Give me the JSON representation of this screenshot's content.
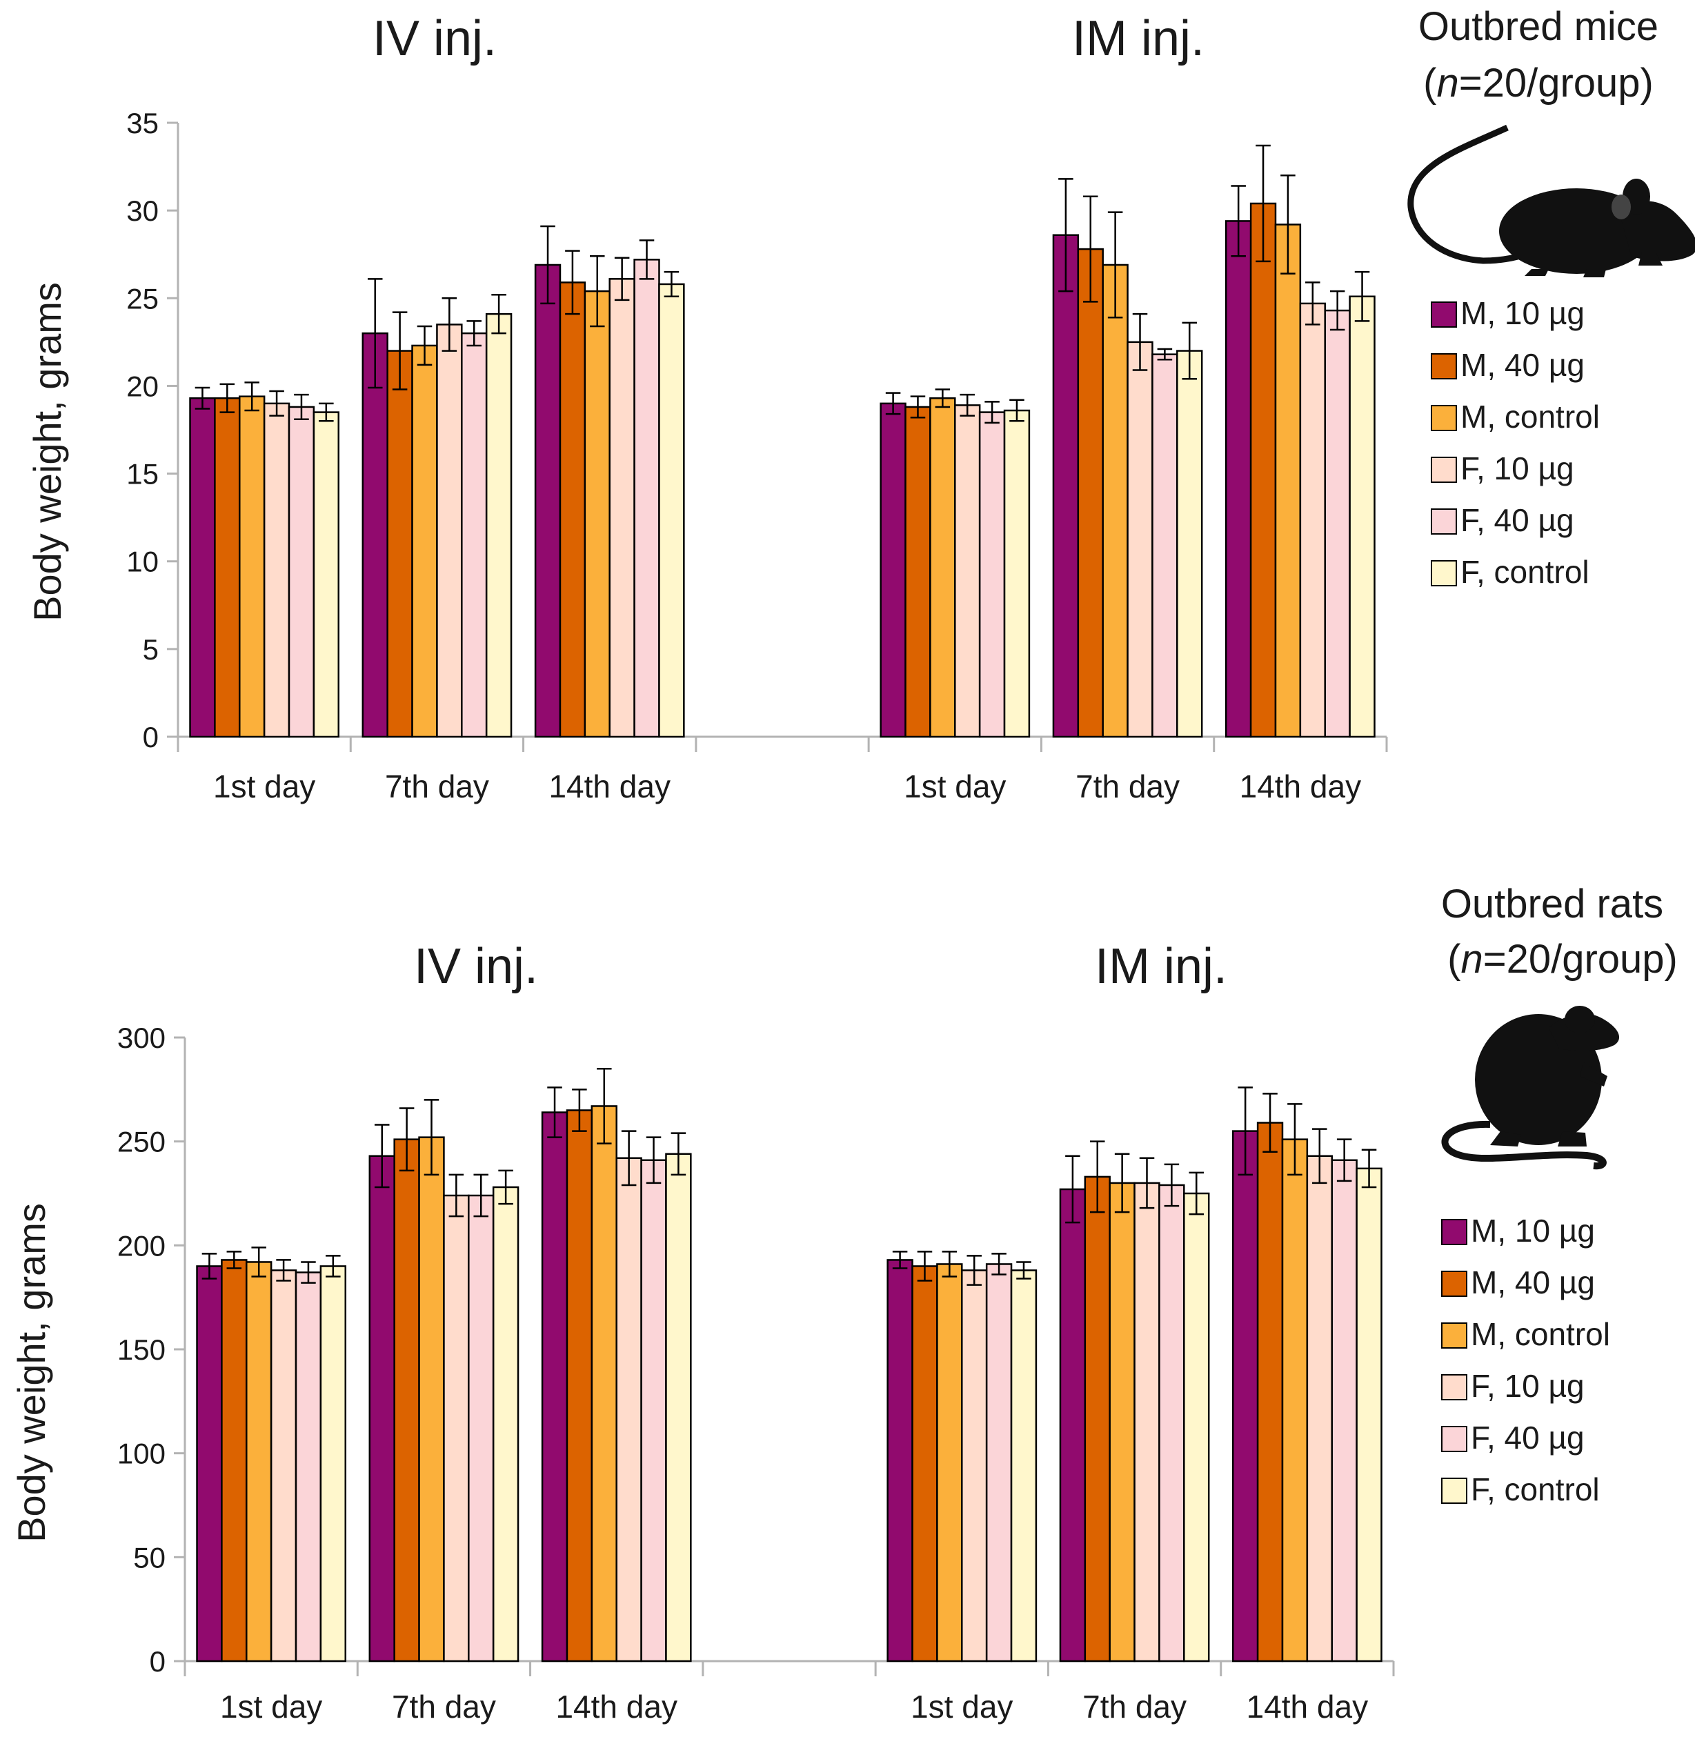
{
  "colors": {
    "M, 10 µg": "#910a6e",
    "M, 40 µg": "#dc6300",
    "M, control": "#fbb03b",
    "F, 10 µg": "#ffdccc",
    "F, 40 µg": "#fbd5d8",
    "F, control": "#fff7cc",
    "axis": "#b3b3b3",
    "stroke": "#000000"
  },
  "icons": {
    "mice": "mouse-silhouette-icon",
    "rats": "rat-silhouette-icon"
  },
  "chart_data": [
    {
      "type": "bar",
      "animal": "mice",
      "title_left": "IV inj.",
      "title_right": "IM inj.",
      "animal_title": "Outbred mice",
      "n_prefix": "(",
      "n_label": "n",
      "n_suffix": "=20/group)",
      "ylabel": "Body weight, grams",
      "xlabel": "",
      "ylim": [
        0,
        35
      ],
      "yticks": [
        0,
        5,
        10,
        15,
        20,
        25,
        30,
        35
      ],
      "categories": [
        "1st day",
        "7th day",
        "14th day",
        "",
        "1st day",
        "7th day",
        "14th day"
      ],
      "legend": [
        "M, 10 µg",
        "M, 40 µg",
        "M, control",
        "F, 10 µg",
        "F, 40 µg",
        "F, control"
      ],
      "series": [
        {
          "name": "M, 10 µg",
          "values": [
            19.3,
            23.0,
            26.9,
            null,
            19.0,
            28.6,
            29.4
          ],
          "errors": [
            0.6,
            3.1,
            2.2,
            null,
            0.6,
            3.2,
            2.0
          ]
        },
        {
          "name": "M, 40 µg",
          "values": [
            19.3,
            22.0,
            25.9,
            null,
            18.8,
            27.8,
            30.4
          ],
          "errors": [
            0.8,
            2.2,
            1.8,
            null,
            0.6,
            3.0,
            3.3
          ]
        },
        {
          "name": "M, control",
          "values": [
            19.4,
            22.3,
            25.4,
            null,
            19.3,
            26.9,
            29.2
          ],
          "errors": [
            0.8,
            1.1,
            2.0,
            null,
            0.5,
            3.0,
            2.8
          ]
        },
        {
          "name": "F, 10 µg",
          "values": [
            19.0,
            23.5,
            26.1,
            null,
            18.9,
            22.5,
            24.7
          ],
          "errors": [
            0.7,
            1.5,
            1.2,
            null,
            0.6,
            1.6,
            1.2
          ]
        },
        {
          "name": "F, 40 µg",
          "values": [
            18.8,
            23.0,
            27.2,
            null,
            18.5,
            21.8,
            24.3
          ],
          "errors": [
            0.7,
            0.7,
            1.1,
            null,
            0.6,
            0.3,
            1.1
          ]
        },
        {
          "name": "F, control",
          "values": [
            18.5,
            24.1,
            25.8,
            null,
            18.6,
            22.0,
            25.1
          ],
          "errors": [
            0.5,
            1.1,
            0.7,
            null,
            0.6,
            1.6,
            1.4
          ]
        }
      ]
    },
    {
      "type": "bar",
      "animal": "rats",
      "title_left": "IV inj.",
      "title_right": "IM inj.",
      "animal_title": "Outbred rats",
      "n_prefix": "(",
      "n_label": "n",
      "n_suffix": "=20/group)",
      "ylabel": "Body weight, grams",
      "xlabel": "",
      "ylim": [
        0,
        300
      ],
      "yticks": [
        0,
        50,
        100,
        150,
        200,
        250,
        300
      ],
      "categories": [
        "1st day",
        "7th day",
        "14th day",
        "",
        "1st day",
        "7th day",
        "14th day"
      ],
      "legend": [
        "M, 10 µg",
        "M, 40 µg",
        "M, control",
        "F, 10 µg",
        "F, 40 µg",
        "F, control"
      ],
      "series": [
        {
          "name": "M, 10 µg",
          "values": [
            190,
            243,
            264,
            null,
            193,
            227,
            255
          ],
          "errors": [
            6,
            15,
            12,
            null,
            4,
            16,
            21
          ]
        },
        {
          "name": "M, 40 µg",
          "values": [
            193,
            251,
            265,
            null,
            190,
            233,
            259
          ],
          "errors": [
            4,
            15,
            10,
            null,
            7,
            17,
            14
          ]
        },
        {
          "name": "M, control",
          "values": [
            192,
            252,
            267,
            null,
            191,
            230,
            251
          ],
          "errors": [
            7,
            18,
            18,
            null,
            6,
            14,
            17
          ]
        },
        {
          "name": "F, 10 µg",
          "values": [
            188,
            224,
            242,
            null,
            188,
            230,
            243
          ],
          "errors": [
            5,
            10,
            13,
            null,
            7,
            12,
            13
          ]
        },
        {
          "name": "F, 40 µg",
          "values": [
            187,
            224,
            241,
            null,
            191,
            229,
            241
          ],
          "errors": [
            5,
            10,
            11,
            null,
            5,
            10,
            10
          ]
        },
        {
          "name": "F, control",
          "values": [
            190,
            228,
            244,
            null,
            188,
            225,
            237
          ],
          "errors": [
            5,
            8,
            10,
            null,
            4,
            10,
            9
          ]
        }
      ]
    }
  ]
}
